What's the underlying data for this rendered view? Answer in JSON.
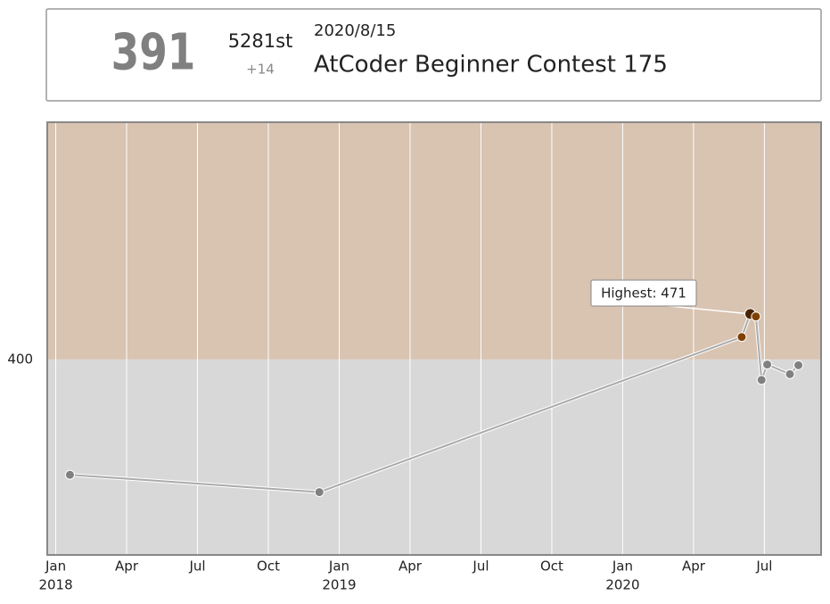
{
  "header": {
    "rating": "391",
    "rank": "5281st",
    "diff": "+14",
    "date": "2020/8/15",
    "contest": "AtCoder Beginner Contest 175"
  },
  "chart_data": {
    "type": "line",
    "x": [
      2018.05,
      2018.93,
      2020.42,
      2020.45,
      2020.47,
      2020.49,
      2020.51,
      2020.59,
      2020.62
    ],
    "values": [
      220,
      193,
      435,
      471,
      467,
      368,
      392,
      377,
      391
    ],
    "xlim": [
      2017.97,
      2020.7
    ],
    "ylim": [
      95,
      770
    ],
    "xticks": [
      {
        "value": 2018,
        "label": "Jan"
      },
      {
        "value": 2018.25,
        "label": "Apr"
      },
      {
        "value": 2018.5,
        "label": "Jul"
      },
      {
        "value": 2018.75,
        "label": "Oct"
      },
      {
        "value": 2019,
        "label": "Jan"
      },
      {
        "value": 2019.25,
        "label": "Apr"
      },
      {
        "value": 2019.5,
        "label": "Jul"
      },
      {
        "value": 2019.75,
        "label": "Oct"
      },
      {
        "value": 2020,
        "label": "Jan"
      },
      {
        "value": 2020.25,
        "label": "Apr"
      },
      {
        "value": 2020.5,
        "label": "Jul"
      }
    ],
    "year_ticks": [
      2018,
      2019,
      2020
    ],
    "yticks": [
      400
    ],
    "band_colors": [
      "#d8d8d8",
      "#d9c3b1"
    ],
    "point_colors": [
      "#808080",
      "#804000"
    ],
    "line_color": "#aaaaaa",
    "annotation": "Highest: 471",
    "annotation_index": 3,
    "grid": true
  }
}
